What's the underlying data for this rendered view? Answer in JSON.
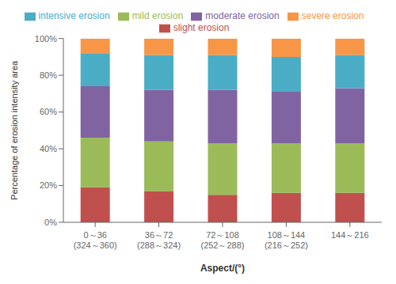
{
  "chart_data": {
    "type": "bar",
    "stacked": true,
    "categories": [
      "0～36\n(324～360)",
      "36～72\n(288～324)",
      "72～108\n(252～288)",
      "108～144\n(216～252)",
      "144～216"
    ],
    "series": [
      {
        "name": "slight erosion",
        "color": "#c0504d",
        "values": [
          19,
          17,
          15,
          16,
          16
        ]
      },
      {
        "name": "mild erosion",
        "color": "#9bbb59",
        "values": [
          27,
          27,
          28,
          27,
          27
        ]
      },
      {
        "name": "moderate erosion",
        "color": "#8064a2",
        "values": [
          28,
          28,
          29,
          28,
          30
        ]
      },
      {
        "name": "intensive erosion",
        "color": "#4bacc6",
        "values": [
          18,
          19,
          19,
          19,
          18
        ]
      },
      {
        "name": "severe erosion",
        "color": "#f79646",
        "values": [
          8,
          9,
          9,
          10,
          9
        ]
      }
    ],
    "xlabel": "Aspect/(°)",
    "ylabel": "Percentage of erosion intensity area",
    "ylim": [
      0,
      100
    ],
    "yticks": [
      {
        "value": 0,
        "label": "0%"
      },
      {
        "value": 20,
        "label": "20%"
      },
      {
        "value": 40,
        "label": "40%"
      },
      {
        "value": 60,
        "label": "60%"
      },
      {
        "value": 80,
        "label": "80%"
      },
      {
        "value": 100,
        "label": "100%"
      }
    ],
    "grid": false,
    "legend": "top"
  }
}
